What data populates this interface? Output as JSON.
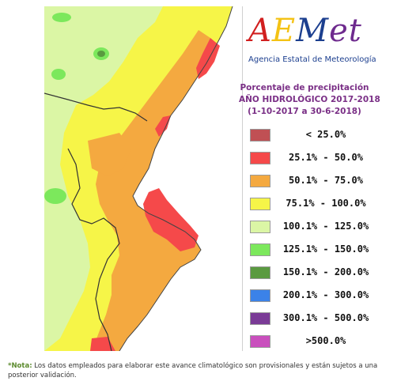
{
  "map": {
    "legend_title": [
      "Porcentaje de precipitación",
      "AÑO HIDROLÓGICO 2017-2018",
      "(1-10-2017 a 30-6-2018)"
    ],
    "legend": [
      {
        "label": "< 25.0%",
        "color": "#c05054"
      },
      {
        "label": "25.1% - 50.0%",
        "color": "#f5494a"
      },
      {
        "label": "50.1% - 75.0%",
        "color": "#f4a940"
      },
      {
        "label": "75.1% - 100.0%",
        "color": "#f6f548"
      },
      {
        "label": "100.1% - 125.0%",
        "color": "#dbf6a5"
      },
      {
        "label": "125.1% - 150.0%",
        "color": "#7ce85c"
      },
      {
        "label": "150.1% - 200.0%",
        "color": "#5a9a40"
      },
      {
        "label": "200.1% - 300.0%",
        "color": "#3b82e8"
      },
      {
        "label": "300.1% - 500.0%",
        "color": "#7a3b96"
      },
      {
        "label": ">500.0%",
        "color": "#c94fbd"
      }
    ],
    "sea_color": "#ffffff"
  },
  "logo": {
    "wordmark_parts": [
      "A",
      "E",
      "M",
      "et"
    ],
    "subtitle": "Agencia Estatal de Meteorología"
  },
  "note": {
    "label": "*Nota:",
    "text": " Los datos empleados para elaborar este avance climatológico son provisionales y están sujetos a una posterior validación."
  }
}
